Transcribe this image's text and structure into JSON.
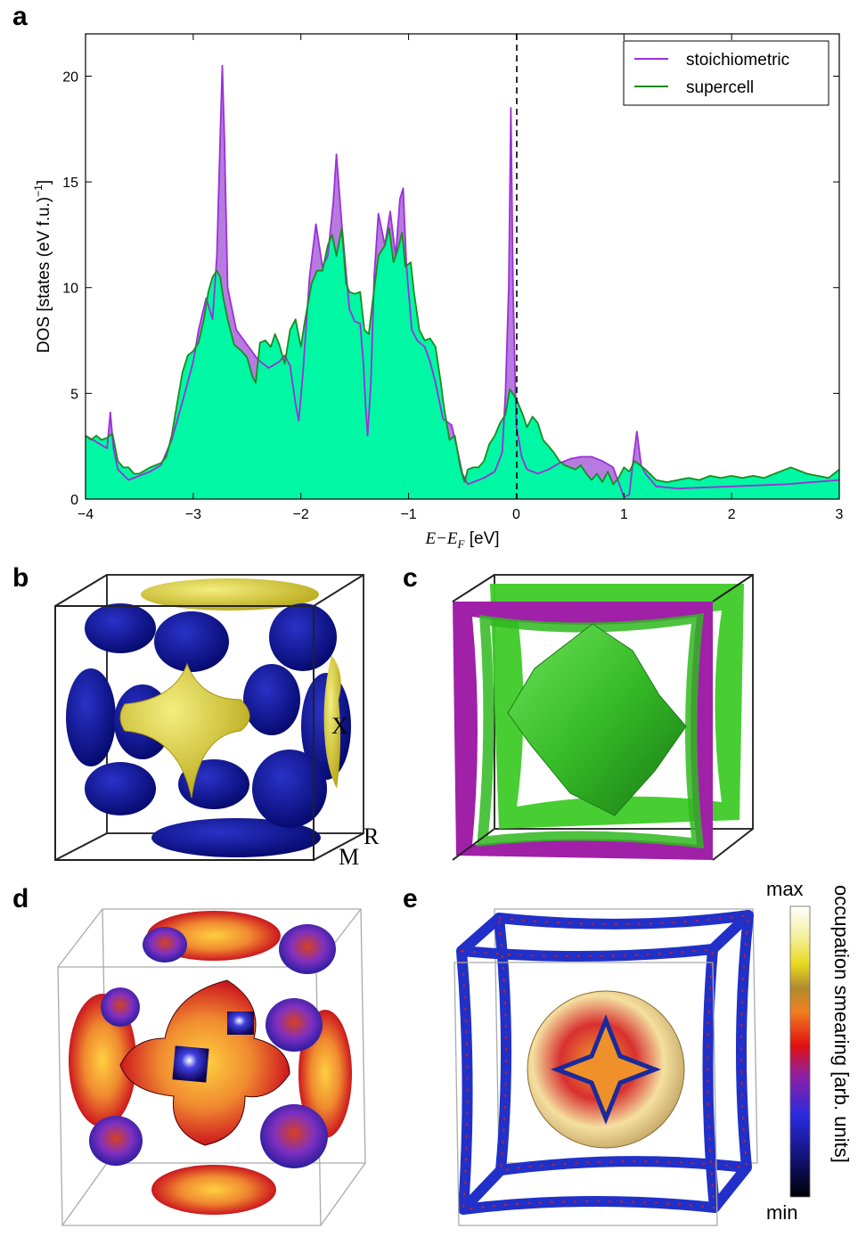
{
  "panel_labels": {
    "a": "a",
    "b": "b",
    "c": "c",
    "d": "d",
    "e": "e"
  },
  "chart_data": {
    "type": "area",
    "xlabel_main": "E−E",
    "xlabel_sub": "F",
    "xlabel_unit": " [eV]",
    "ylabel": "DOS [states (eV f.u.)",
    "ylabel_sup": "−1",
    "ylabel_end": "]",
    "xlim": [
      -4,
      3
    ],
    "ylim": [
      0,
      22
    ],
    "xticks": [
      -4,
      -3,
      -2,
      -1,
      0,
      1,
      2,
      3
    ],
    "xtick_labels": [
      "−4",
      "−3",
      "−2",
      "−1",
      "0",
      "1",
      "2",
      "3"
    ],
    "yticks": [
      0,
      5,
      10,
      15,
      20
    ],
    "ytick_labels": [
      "0",
      "5",
      "10",
      "15",
      "20"
    ],
    "fermi_line_x": 0,
    "legend_position": "top-right",
    "series": [
      {
        "name": "stoichiometric",
        "color": "#9b30d9",
        "fill": "#b77be0",
        "points": [
          [
            -4.0,
            3.0
          ],
          [
            -3.9,
            2.7
          ],
          [
            -3.8,
            2.4
          ],
          [
            -3.77,
            4.1
          ],
          [
            -3.74,
            2.4
          ],
          [
            -3.7,
            1.4
          ],
          [
            -3.6,
            0.9
          ],
          [
            -3.5,
            1.1
          ],
          [
            -3.4,
            1.3
          ],
          [
            -3.3,
            1.6
          ],
          [
            -3.2,
            2.8
          ],
          [
            -3.1,
            4.6
          ],
          [
            -3.0,
            6.5
          ],
          [
            -2.95,
            8.0
          ],
          [
            -2.88,
            9.5
          ],
          [
            -2.82,
            8.5
          ],
          [
            -2.78,
            11.5
          ],
          [
            -2.75,
            17.0
          ],
          [
            -2.73,
            20.5
          ],
          [
            -2.71,
            17.0
          ],
          [
            -2.68,
            10.0
          ],
          [
            -2.6,
            8.0
          ],
          [
            -2.5,
            7.3
          ],
          [
            -2.4,
            6.6
          ],
          [
            -2.3,
            6.2
          ],
          [
            -2.2,
            6.5
          ],
          [
            -2.15,
            6.8
          ],
          [
            -2.1,
            6.3
          ],
          [
            -2.05,
            4.5
          ],
          [
            -2.02,
            3.7
          ],
          [
            -1.98,
            6.0
          ],
          [
            -1.92,
            10.5
          ],
          [
            -1.86,
            13.0
          ],
          [
            -1.8,
            11.0
          ],
          [
            -1.75,
            11.5
          ],
          [
            -1.7,
            14.0
          ],
          [
            -1.67,
            16.3
          ],
          [
            -1.62,
            13.0
          ],
          [
            -1.55,
            9.0
          ],
          [
            -1.5,
            8.4
          ],
          [
            -1.45,
            8.3
          ],
          [
            -1.42,
            6.5
          ],
          [
            -1.4,
            4.5
          ],
          [
            -1.38,
            3.0
          ],
          [
            -1.35,
            5.5
          ],
          [
            -1.32,
            10.5
          ],
          [
            -1.28,
            13.5
          ],
          [
            -1.22,
            12.0
          ],
          [
            -1.17,
            13.6
          ],
          [
            -1.12,
            11.5
          ],
          [
            -1.08,
            14.2
          ],
          [
            -1.05,
            14.7
          ],
          [
            -1.02,
            11.0
          ],
          [
            -0.97,
            8.0
          ],
          [
            -0.92,
            7.5
          ],
          [
            -0.85,
            7.2
          ],
          [
            -0.8,
            6.5
          ],
          [
            -0.75,
            5.5
          ],
          [
            -0.68,
            3.8
          ],
          [
            -0.6,
            3.5
          ],
          [
            -0.55,
            2.4
          ],
          [
            -0.5,
            1.2
          ],
          [
            -0.45,
            0.7
          ],
          [
            -0.4,
            0.8
          ],
          [
            -0.3,
            1.0
          ],
          [
            -0.2,
            1.3
          ],
          [
            -0.13,
            2.2
          ],
          [
            -0.1,
            5.0
          ],
          [
            -0.07,
            10.0
          ],
          [
            -0.05,
            18.5
          ],
          [
            -0.03,
            10.0
          ],
          [
            0.0,
            3.5
          ],
          [
            0.05,
            2.0
          ],
          [
            0.1,
            1.4
          ],
          [
            0.2,
            1.2
          ],
          [
            0.3,
            1.4
          ],
          [
            0.4,
            1.7
          ],
          [
            0.5,
            1.9
          ],
          [
            0.6,
            2.0
          ],
          [
            0.7,
            2.0
          ],
          [
            0.8,
            1.8
          ],
          [
            0.9,
            1.5
          ],
          [
            0.95,
            0.8
          ],
          [
            1.0,
            0.1
          ],
          [
            1.05,
            0.2
          ],
          [
            1.08,
            1.6
          ],
          [
            1.12,
            3.2
          ],
          [
            1.16,
            1.6
          ],
          [
            1.2,
            1.2
          ],
          [
            1.25,
            0.9
          ],
          [
            1.3,
            0.6
          ],
          [
            1.5,
            0.5
          ],
          [
            2.0,
            0.6
          ],
          [
            2.5,
            0.7
          ],
          [
            3.0,
            0.9
          ]
        ]
      },
      {
        "name": "supercell",
        "color": "#1e8a1e",
        "fill": "#00f7a4",
        "points": [
          [
            -4.0,
            3.0
          ],
          [
            -3.95,
            2.8
          ],
          [
            -3.9,
            3.0
          ],
          [
            -3.85,
            2.8
          ],
          [
            -3.8,
            2.9
          ],
          [
            -3.75,
            3.1
          ],
          [
            -3.7,
            1.8
          ],
          [
            -3.65,
            1.5
          ],
          [
            -3.6,
            1.5
          ],
          [
            -3.55,
            1.2
          ],
          [
            -3.5,
            1.2
          ],
          [
            -3.4,
            1.5
          ],
          [
            -3.3,
            1.7
          ],
          [
            -3.25,
            2.0
          ],
          [
            -3.2,
            3.0
          ],
          [
            -3.15,
            4.5
          ],
          [
            -3.1,
            6.0
          ],
          [
            -3.05,
            6.8
          ],
          [
            -3.0,
            7.0
          ],
          [
            -2.95,
            7.4
          ],
          [
            -2.9,
            8.5
          ],
          [
            -2.86,
            9.8
          ],
          [
            -2.82,
            10.5
          ],
          [
            -2.78,
            10.8
          ],
          [
            -2.75,
            10.5
          ],
          [
            -2.72,
            9.5
          ],
          [
            -2.68,
            8.5
          ],
          [
            -2.62,
            7.3
          ],
          [
            -2.55,
            7.0
          ],
          [
            -2.5,
            6.7
          ],
          [
            -2.45,
            5.8
          ],
          [
            -2.42,
            5.5
          ],
          [
            -2.38,
            7.4
          ],
          [
            -2.33,
            7.5
          ],
          [
            -2.28,
            7.2
          ],
          [
            -2.24,
            7.8
          ],
          [
            -2.2,
            7.3
          ],
          [
            -2.15,
            6.4
          ],
          [
            -2.1,
            8.0
          ],
          [
            -2.05,
            8.5
          ],
          [
            -2.0,
            7.2
          ],
          [
            -1.96,
            8.5
          ],
          [
            -1.9,
            10.2
          ],
          [
            -1.85,
            10.8
          ],
          [
            -1.8,
            10.8
          ],
          [
            -1.75,
            12.0
          ],
          [
            -1.71,
            12.5
          ],
          [
            -1.67,
            11.5
          ],
          [
            -1.62,
            12.8
          ],
          [
            -1.58,
            10.2
          ],
          [
            -1.55,
            9.8
          ],
          [
            -1.5,
            9.7
          ],
          [
            -1.45,
            9.8
          ],
          [
            -1.41,
            8.0
          ],
          [
            -1.37,
            7.8
          ],
          [
            -1.33,
            9.5
          ],
          [
            -1.28,
            11.5
          ],
          [
            -1.22,
            12.0
          ],
          [
            -1.18,
            12.8
          ],
          [
            -1.14,
            11.2
          ],
          [
            -1.1,
            11.8
          ],
          [
            -1.06,
            12.6
          ],
          [
            -1.03,
            11.0
          ],
          [
            -0.98,
            11.2
          ],
          [
            -0.95,
            9.8
          ],
          [
            -0.9,
            8.0
          ],
          [
            -0.85,
            7.5
          ],
          [
            -0.8,
            7.6
          ],
          [
            -0.75,
            7.2
          ],
          [
            -0.7,
            5.5
          ],
          [
            -0.67,
            4.3
          ],
          [
            -0.62,
            2.8
          ],
          [
            -0.57,
            3.0
          ],
          [
            -0.52,
            1.5
          ],
          [
            -0.48,
            0.8
          ],
          [
            -0.45,
            1.4
          ],
          [
            -0.4,
            1.5
          ],
          [
            -0.35,
            1.5
          ],
          [
            -0.3,
            1.8
          ],
          [
            -0.25,
            2.6
          ],
          [
            -0.2,
            3.0
          ],
          [
            -0.15,
            3.6
          ],
          [
            -0.1,
            4.0
          ],
          [
            -0.06,
            5.2
          ],
          [
            -0.02,
            4.9
          ],
          [
            0.02,
            4.5
          ],
          [
            0.06,
            4.0
          ],
          [
            0.1,
            3.4
          ],
          [
            0.15,
            3.9
          ],
          [
            0.2,
            3.6
          ],
          [
            0.25,
            2.8
          ],
          [
            0.3,
            2.5
          ],
          [
            0.35,
            2.2
          ],
          [
            0.4,
            1.8
          ],
          [
            0.45,
            1.6
          ],
          [
            0.5,
            1.5
          ],
          [
            0.55,
            1.4
          ],
          [
            0.6,
            1.6
          ],
          [
            0.65,
            1.2
          ],
          [
            0.7,
            0.9
          ],
          [
            0.75,
            1.2
          ],
          [
            0.8,
            0.8
          ],
          [
            0.85,
            1.3
          ],
          [
            0.9,
            0.7
          ],
          [
            0.95,
            1.0
          ],
          [
            1.0,
            1.5
          ],
          [
            1.05,
            1.3
          ],
          [
            1.1,
            1.8
          ],
          [
            1.15,
            1.6
          ],
          [
            1.2,
            1.4
          ],
          [
            1.3,
            0.9
          ],
          [
            1.4,
            0.8
          ],
          [
            1.5,
            0.9
          ],
          [
            1.6,
            1.0
          ],
          [
            1.7,
            0.9
          ],
          [
            1.8,
            1.1
          ],
          [
            1.9,
            1.0
          ],
          [
            2.0,
            1.1
          ],
          [
            2.1,
            1.0
          ],
          [
            2.2,
            1.1
          ],
          [
            2.3,
            1.0
          ],
          [
            2.4,
            1.2
          ],
          [
            2.5,
            1.4
          ],
          [
            2.55,
            1.5
          ],
          [
            2.6,
            1.4
          ],
          [
            2.7,
            1.2
          ],
          [
            2.8,
            1.1
          ],
          [
            2.9,
            1.0
          ],
          [
            3.0,
            1.4
          ]
        ]
      }
    ]
  },
  "fermi_surfaces": {
    "b": {
      "labels": [
        "X",
        "R",
        "M"
      ],
      "colors": {
        "hole": "#0a0f96",
        "electron": "#dcd12e"
      }
    },
    "c": {
      "colors": {
        "pocket": "#33cc22",
        "frame_a": "#a020a8",
        "frame_b": "#3ecb28"
      }
    }
  },
  "colorbar": {
    "max_label": "max",
    "min_label": "min",
    "title": "occupation smearing [arb. units]"
  }
}
